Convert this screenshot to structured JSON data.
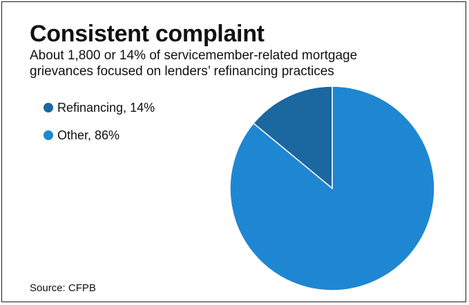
{
  "title": "Consistent complaint",
  "subtitle": "About 1,800 or 14% of servicemember-related mortgage grievances focused on lenders’ refinancing practices",
  "source": "Source: CFPB",
  "chart_data": {
    "type": "pie",
    "title": "Consistent complaint",
    "subtitle": "About 1,800 or 14% of servicemember-related mortgage grievances focused on lenders’ refinancing practices",
    "legend_position": "top-left",
    "slices": [
      {
        "label": "Refinancing, 14%",
        "value": 14,
        "color": "#1b679f"
      },
      {
        "label": "Other, 86%",
        "value": 86,
        "color": "#1f87d2"
      }
    ]
  }
}
